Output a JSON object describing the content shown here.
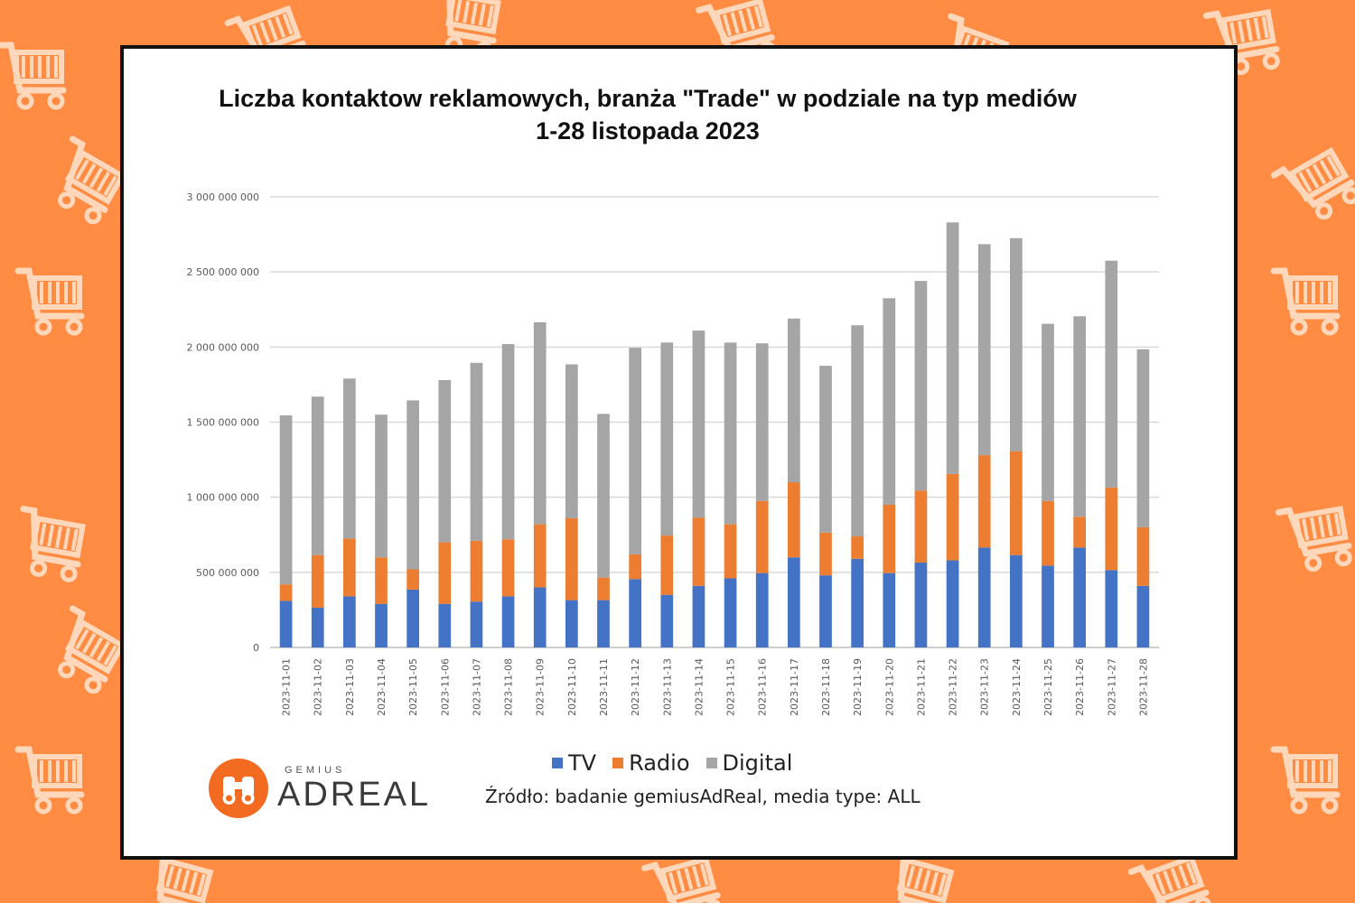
{
  "colors": {
    "background": "#FF8C42",
    "pattern": "#FFD7BA",
    "tv": "#4472C4",
    "radio": "#ED7D31",
    "digital": "#A5A5A5"
  },
  "logo": {
    "top": "GEMIUS",
    "bottom": "ADREAL",
    "icon": "binoculars-icon"
  },
  "source": "Źródło: badanie gemiusAdReal, media type: ALL",
  "chart_data": {
    "type": "bar",
    "stacked": true,
    "title": "Liczba kontaktow reklamowych, branża \"Trade\" w podziale na typ mediów",
    "subtitle": "1-28 listopada 2023",
    "categories": [
      "2023-11-01",
      "2023-11-02",
      "2023-11-03",
      "2023-11-04",
      "2023-11-05",
      "2023-11-06",
      "2023-11-07",
      "2023-11-08",
      "2023-11-09",
      "2023-11-10",
      "2023-11-11",
      "2023-11-12",
      "2023-11-13",
      "2023-11-14",
      "2023-11-15",
      "2023-11-16",
      "2023-11-17",
      "2023-11-18",
      "2023-11-19",
      "2023-11-20",
      "2023-11-21",
      "2023-11-22",
      "2023-11-23",
      "2023-11-24",
      "2023-11-25",
      "2023-11-26",
      "2023-11-27",
      "2023-11-28"
    ],
    "series": [
      {
        "name": "TV",
        "values": [
          310000000,
          265000000,
          340000000,
          290000000,
          385000000,
          290000000,
          305000000,
          340000000,
          400000000,
          315000000,
          315000000,
          455000000,
          350000000,
          410000000,
          460000000,
          495000000,
          600000000,
          480000000,
          590000000,
          495000000,
          565000000,
          580000000,
          665000000,
          615000000,
          545000000,
          665000000,
          515000000,
          410000000
        ]
      },
      {
        "name": "Radio",
        "values": [
          110000000,
          350000000,
          385000000,
          310000000,
          135000000,
          410000000,
          405000000,
          380000000,
          420000000,
          545000000,
          150000000,
          165000000,
          395000000,
          455000000,
          360000000,
          480000000,
          500000000,
          285000000,
          150000000,
          455000000,
          480000000,
          575000000,
          615000000,
          690000000,
          430000000,
          205000000,
          550000000,
          390000000
        ]
      },
      {
        "name": "Digital",
        "values": [
          1125000000,
          1055000000,
          1065000000,
          950000000,
          1125000000,
          1080000000,
          1185000000,
          1300000000,
          1345000000,
          1025000000,
          1090000000,
          1375000000,
          1285000000,
          1245000000,
          1210000000,
          1050000000,
          1090000000,
          1110000000,
          1405000000,
          1375000000,
          1395000000,
          1675000000,
          1405000000,
          1420000000,
          1180000000,
          1335000000,
          1510000000,
          1185000000
        ]
      }
    ],
    "ylim": [
      0,
      3000000000
    ],
    "yticks": [
      0,
      500000000,
      1000000000,
      1500000000,
      2000000000,
      2500000000,
      3000000000
    ],
    "ytick_labels": [
      "0",
      "500 000 000",
      "1 000 000 000",
      "1 500 000 000",
      "2 000 000 000",
      "2 500 000 000",
      "3 000 000 000"
    ],
    "grid": true,
    "legend": "bottom"
  }
}
